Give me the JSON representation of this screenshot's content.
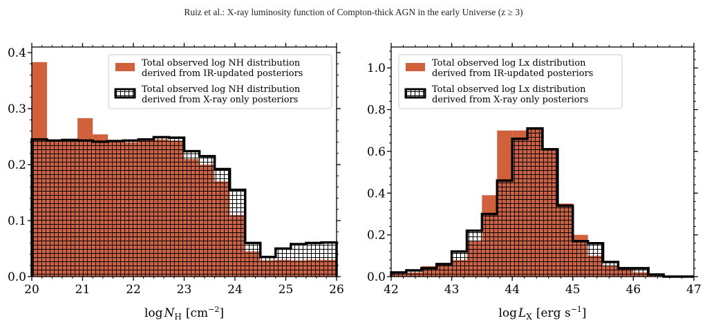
{
  "header": {
    "running_title": "Ruiz et al.: X-ray luminosity function of Compton-thick AGN in the early Universe (z ≥ 3)"
  },
  "colors": {
    "ir_fill": "#d1603d",
    "xray_edge": "#000000",
    "hatch": "#000000",
    "background": "#ffffff"
  },
  "chart_data": [
    {
      "type": "bar",
      "panel": "left",
      "xlabel_main": "log",
      "xlabel_symbol": "N",
      "xlabel_sub": "H",
      "xlabel_unit": "[cm",
      "xlabel_sup": "−2",
      "xlabel_close": "]",
      "xlim": [
        20,
        26
      ],
      "ylim": [
        0,
        0.41
      ],
      "xticks": [
        20,
        21,
        22,
        23,
        24,
        25,
        26
      ],
      "yticks": [
        0.0,
        0.1,
        0.2,
        0.3,
        0.4
      ],
      "ytick_labels": [
        "0.0",
        "0.1",
        "0.2",
        "0.3",
        "0.4"
      ],
      "bin_edges": [
        20.0,
        20.3,
        20.6,
        20.9,
        21.2,
        21.5,
        21.8,
        22.1,
        22.4,
        22.7,
        23.0,
        23.3,
        23.6,
        23.9,
        24.2,
        24.5,
        24.8,
        25.1,
        25.4,
        25.7,
        26.0
      ],
      "legend_position": "upper right",
      "series": [
        {
          "name": "Total observed log NH distribution\n derived from IR-updated posteriors",
          "style": "filled",
          "values": [
            0.383,
            0.242,
            0.241,
            0.283,
            0.254,
            0.24,
            0.24,
            0.246,
            0.245,
            0.243,
            0.21,
            0.2,
            0.17,
            0.11,
            0.045,
            0.029,
            0.03,
            0.029,
            0.03,
            0.03
          ]
        },
        {
          "name": "Total observed log NH distribution\n derived from X-ray only posteriors",
          "style": "hatched-step",
          "values": [
            0.245,
            0.243,
            0.244,
            0.243,
            0.241,
            0.242,
            0.243,
            0.245,
            0.249,
            0.248,
            0.224,
            0.215,
            0.192,
            0.155,
            0.06,
            0.035,
            0.05,
            0.058,
            0.06,
            0.061
          ]
        }
      ]
    },
    {
      "type": "bar",
      "panel": "right",
      "xlabel_main": "log",
      "xlabel_symbol": "L",
      "xlabel_sub": "X",
      "xlabel_unit": "[erg s",
      "xlabel_sup": "−1",
      "xlabel_close": "]",
      "xlim": [
        42,
        47
      ],
      "ylim": [
        0,
        1.1
      ],
      "xticks": [
        42,
        43,
        44,
        45,
        46,
        47
      ],
      "yticks": [
        0.0,
        0.2,
        0.4,
        0.6,
        0.8,
        1.0
      ],
      "ytick_labels": [
        "0.0",
        "0.2",
        "0.4",
        "0.6",
        "0.8",
        "1.0"
      ],
      "bin_edges": [
        42.0,
        42.25,
        42.5,
        42.75,
        43.0,
        43.25,
        43.5,
        43.75,
        44.0,
        44.25,
        44.5,
        44.75,
        45.0,
        45.25,
        45.5,
        45.75,
        46.0,
        46.25,
        46.5,
        46.75,
        47.0
      ],
      "legend_position": "upper left",
      "series": [
        {
          "name": "Total observed log Lx distribution\n derived from IR-updated posteriors",
          "style": "filled",
          "values": [
            0.01,
            0.02,
            0.05,
            0.06,
            0.08,
            0.17,
            0.39,
            0.7,
            0.7,
            0.71,
            0.61,
            0.35,
            0.2,
            0.1,
            0.05,
            0.04,
            0.02,
            0.01,
            0.0,
            0.0
          ]
        },
        {
          "name": "Total observed log Lx distribution\n derived from X-ray only posteriors",
          "style": "hatched-step",
          "values": [
            0.02,
            0.03,
            0.04,
            0.06,
            0.12,
            0.22,
            0.3,
            0.46,
            0.66,
            0.71,
            0.61,
            0.34,
            0.17,
            0.16,
            0.07,
            0.04,
            0.04,
            0.01,
            0.0,
            0.0
          ]
        }
      ]
    }
  ]
}
